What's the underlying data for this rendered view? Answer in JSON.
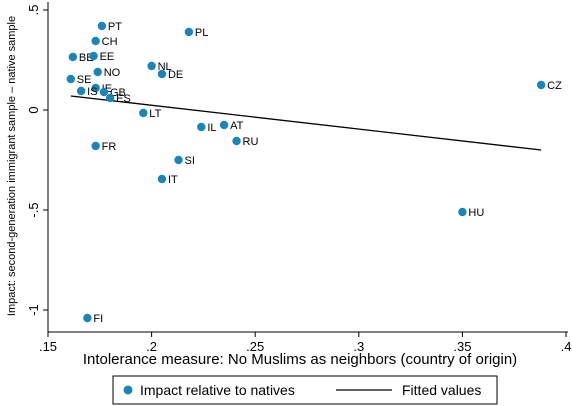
{
  "chart_data": {
    "type": "scatter",
    "xlabel": "Intolerance measure: No Muslims as neighbors (country of origin)",
    "ylabel": "Impact: second-generation immigrant sample – native sample",
    "xlim": [
      0.15,
      0.4
    ],
    "ylim": [
      -1.05,
      0.5
    ],
    "x_ticks": [
      0.15,
      0.2,
      0.25,
      0.3,
      0.35,
      0.4
    ],
    "x_tick_labels": [
      ".15",
      ".2",
      ".25",
      ".3",
      ".35",
      ".4"
    ],
    "y_ticks": [
      -1,
      -0.5,
      0,
      0.5
    ],
    "y_tick_labels": [
      "-1",
      "-.5",
      "0",
      ".5"
    ],
    "grid": false,
    "series": [
      {
        "name": "Impact relative to natives",
        "kind": "scatter",
        "color": "#1a85b8",
        "points": [
          {
            "label": "PT",
            "x": 0.176,
            "y": 0.42
          },
          {
            "label": "PL",
            "x": 0.218,
            "y": 0.39
          },
          {
            "label": "CH",
            "x": 0.173,
            "y": 0.345
          },
          {
            "label": "BE",
            "x": 0.162,
            "y": 0.265
          },
          {
            "label": "EE",
            "x": 0.172,
            "y": 0.27
          },
          {
            "label": "NL",
            "x": 0.2,
            "y": 0.22
          },
          {
            "label": "DE",
            "x": 0.205,
            "y": 0.18
          },
          {
            "label": "NO",
            "x": 0.174,
            "y": 0.19
          },
          {
            "label": "SE",
            "x": 0.161,
            "y": 0.155
          },
          {
            "label": "IE",
            "x": 0.173,
            "y": 0.11
          },
          {
            "label": "IS",
            "x": 0.166,
            "y": 0.095
          },
          {
            "label": "GB",
            "x": 0.177,
            "y": 0.09
          },
          {
            "label": "ES",
            "x": 0.18,
            "y": 0.06
          },
          {
            "label": "CZ",
            "x": 0.388,
            "y": 0.125
          },
          {
            "label": "LT",
            "x": 0.196,
            "y": -0.015
          },
          {
            "label": "AT",
            "x": 0.235,
            "y": -0.075
          },
          {
            "label": "IL",
            "x": 0.224,
            "y": -0.085
          },
          {
            "label": "RU",
            "x": 0.241,
            "y": -0.155
          },
          {
            "label": "FR",
            "x": 0.173,
            "y": -0.18
          },
          {
            "label": "SI",
            "x": 0.213,
            "y": -0.25
          },
          {
            "label": "IT",
            "x": 0.205,
            "y": -0.345
          },
          {
            "label": "HU",
            "x": 0.35,
            "y": -0.51
          },
          {
            "label": "FI",
            "x": 0.169,
            "y": -1.04
          }
        ]
      },
      {
        "name": "Fitted values",
        "kind": "line",
        "color": "#000000",
        "x": [
          0.161,
          0.388
        ],
        "y": [
          0.07,
          -0.2
        ]
      }
    ],
    "legend_position": "bottom"
  }
}
